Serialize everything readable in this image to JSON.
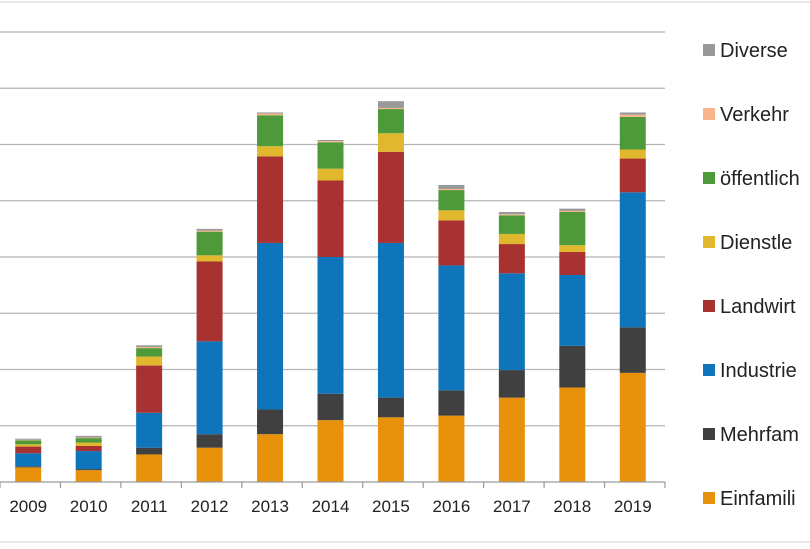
{
  "chart_data": {
    "type": "bar",
    "stacked": true,
    "title": "",
    "xlabel": "",
    "ylabel": "",
    "ylim": [
      0,
      8
    ],
    "grid": true,
    "legend_position": "right",
    "categories": [
      "2009",
      "2010",
      "2011",
      "2012",
      "2013",
      "2014",
      "2015",
      "2016",
      "2017",
      "2018",
      "2019"
    ],
    "series": [
      {
        "name": "Einfamili",
        "color": "#E8920C",
        "values": [
          0.26,
          0.21,
          0.49,
          0.61,
          0.85,
          1.1,
          1.15,
          1.18,
          1.5,
          1.68,
          1.94
        ]
      },
      {
        "name": "Mehrfam",
        "color": "#404040",
        "values": [
          0.02,
          0.02,
          0.12,
          0.24,
          0.44,
          0.47,
          0.35,
          0.45,
          0.49,
          0.74,
          0.81
        ]
      },
      {
        "name": "Industrie",
        "color": "#0F75BB",
        "values": [
          0.23,
          0.32,
          0.62,
          1.65,
          2.96,
          2.43,
          2.75,
          2.22,
          1.72,
          1.26,
          2.4
        ]
      },
      {
        "name": "Landwirt",
        "color": "#A83232",
        "values": [
          0.12,
          0.09,
          0.84,
          1.42,
          1.54,
          1.36,
          1.62,
          0.8,
          0.52,
          0.41,
          0.6
        ]
      },
      {
        "name": "Dienstle",
        "color": "#E1B72E",
        "values": [
          0.04,
          0.06,
          0.16,
          0.11,
          0.18,
          0.21,
          0.33,
          0.18,
          0.18,
          0.12,
          0.16
        ]
      },
      {
        "name": "öffentlich",
        "color": "#4E9A3A",
        "values": [
          0.07,
          0.08,
          0.15,
          0.42,
          0.55,
          0.47,
          0.43,
          0.36,
          0.33,
          0.59,
          0.58
        ]
      },
      {
        "name": "Verkehr",
        "color": "#F7B589",
        "values": [
          0.01,
          0.01,
          0.02,
          0.02,
          0.03,
          0.02,
          0.02,
          0.02,
          0.02,
          0.02,
          0.04
        ]
      },
      {
        "name": "Diverse",
        "color": "#999999",
        "values": [
          0.02,
          0.03,
          0.03,
          0.03,
          0.02,
          0.02,
          0.12,
          0.07,
          0.04,
          0.04,
          0.04
        ]
      }
    ],
    "legend_order": [
      "Diverse",
      "Verkehr",
      "öffentlich",
      "Dienstle",
      "Landwirt",
      "Industrie",
      "Mehrfam",
      "Einfamili"
    ]
  }
}
